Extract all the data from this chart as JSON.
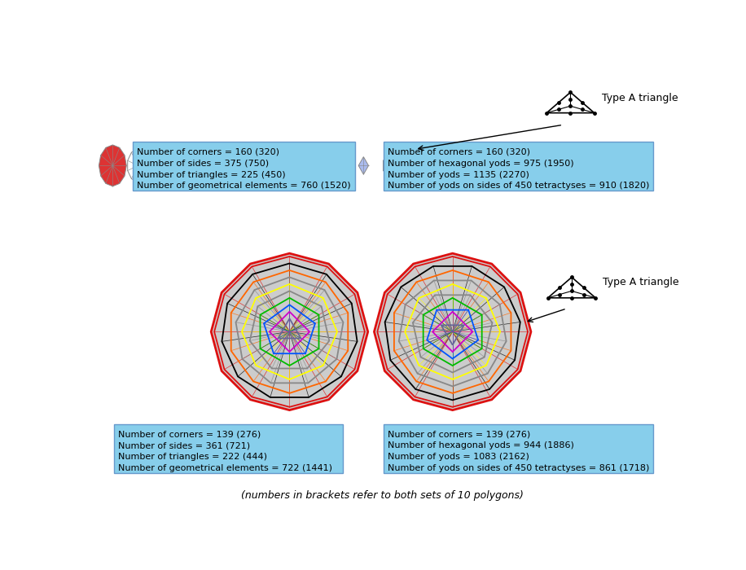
{
  "footer": "(numbers in brackets refer to both sets of 10 polygons)",
  "type_a_label": "Type A triangle",
  "box1_text": [
    "Number of corners = 160 (320)",
    "Number of sides = 375 (750)",
    "Number of triangles = 225 (450)",
    "Number of geometrical elements = 760 (1520)"
  ],
  "box2_text": [
    "Number of corners = 160 (320)",
    "Number of hexagonal yods = 975 (1950)",
    "Number of yods = 1135 (2270)",
    "Number of yods on sides of 450 tetractyses = 910 (1820)"
  ],
  "box3_text": [
    "Number of corners = 139 (276)",
    "Number of sides = 361 (721)",
    "Number of triangles = 222 (444)",
    "Number of geometrical elements = 722 (1441)"
  ],
  "box4_text": [
    "Number of corners = 139 (276)",
    "Number of hexagonal yods = 944 (1886)",
    "Number of yods = 1083 (2162)",
    "Number of yods on sides of 450 tetractyses = 861 (1718)"
  ],
  "bg_color": "#ffffff",
  "box_bg": "#87ceeb",
  "big_polygon_colors": [
    "#dd1111",
    "#000000",
    "#ff6600",
    "#888888",
    "#ffff00",
    "#888888",
    "#00bb00",
    "#0055ff",
    "#cc00cc",
    "#666699"
  ],
  "big_polygon_sides": [
    12,
    11,
    10,
    9,
    8,
    7,
    6,
    5,
    4,
    3
  ],
  "big_polygon_radii": [
    120,
    109,
    98,
    87,
    76,
    65,
    54,
    43,
    32,
    21
  ]
}
